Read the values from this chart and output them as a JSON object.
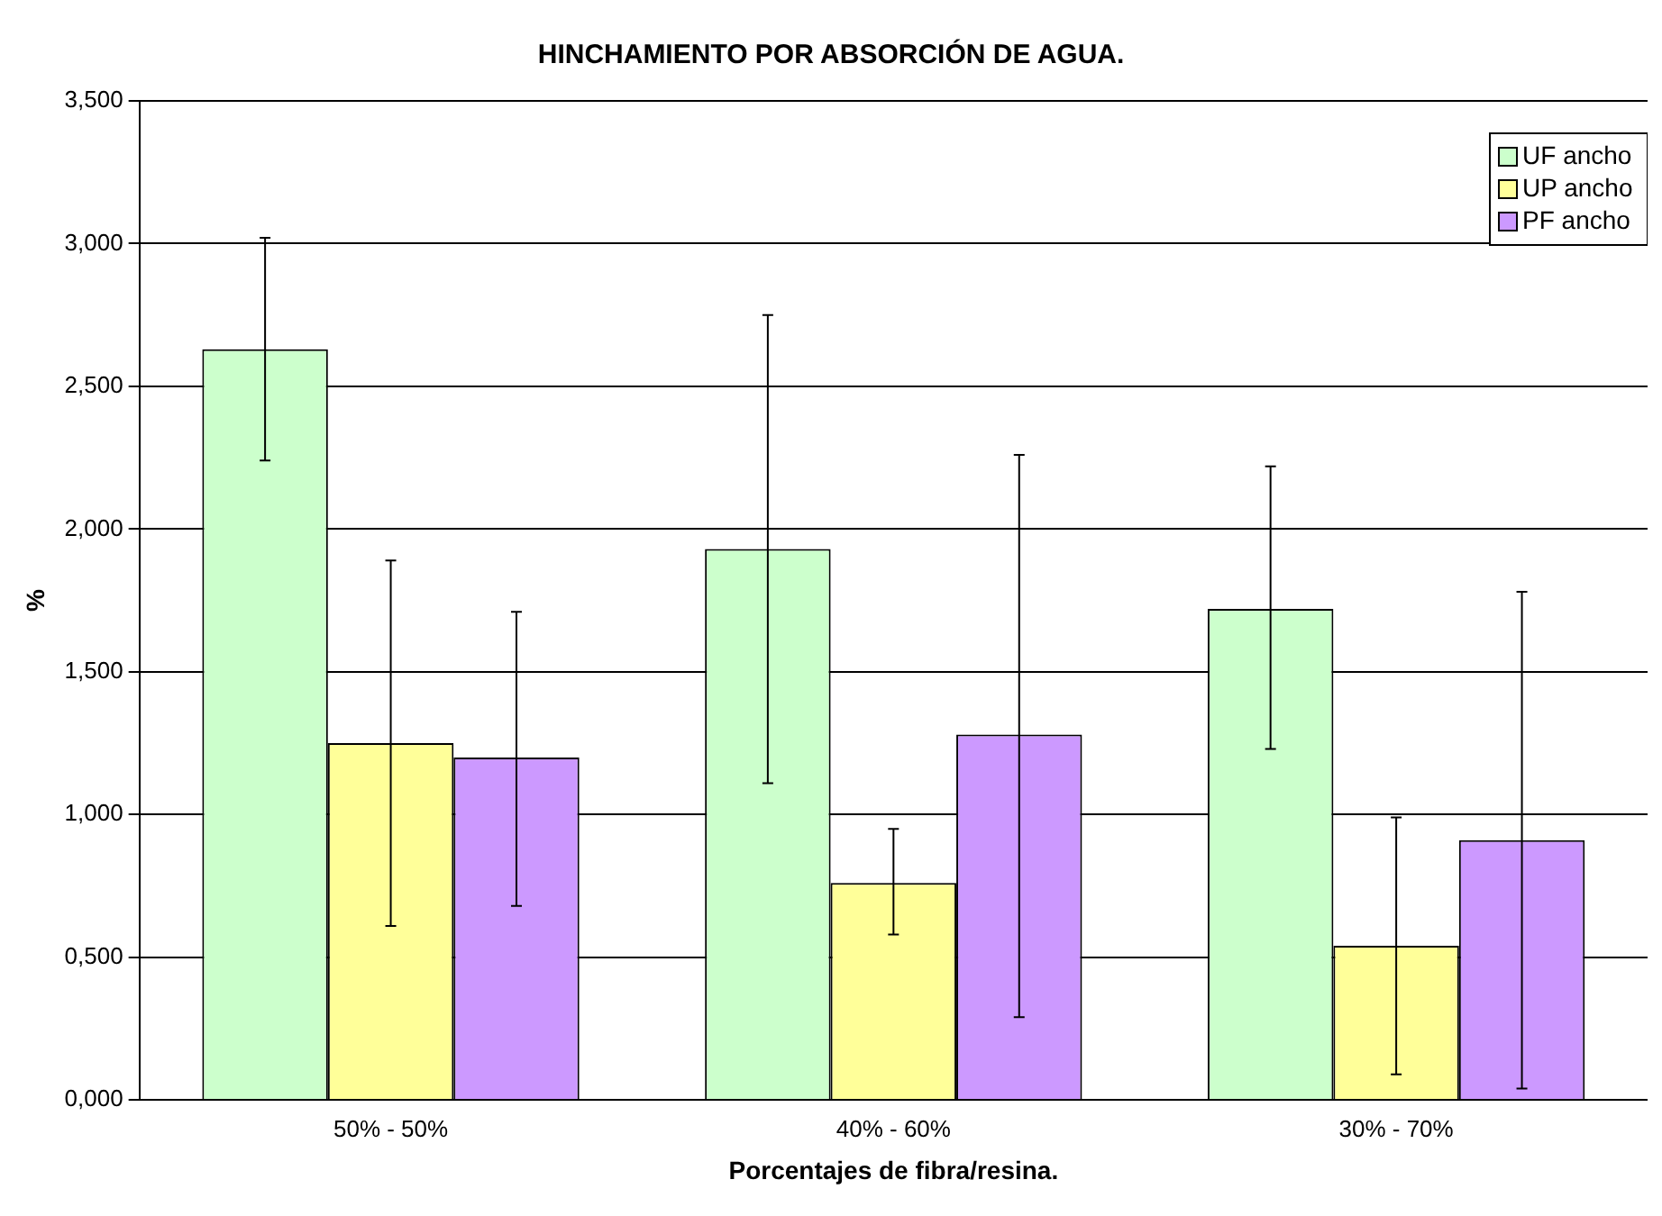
{
  "chart_data": {
    "type": "bar",
    "title": "HINCHAMIENTO POR ABSORCIÓN DE AGUA.",
    "xlabel": "Porcentajes de fibra/resina.",
    "ylabel": "%",
    "categories": [
      "50% - 50%",
      "40% - 60%",
      "30% - 70%"
    ],
    "series": [
      {
        "name": "UF ancho",
        "color": "#ccffcc",
        "values": [
          2.63,
          1.93,
          1.72
        ],
        "errors": [
          [
            2.24,
            3.02
          ],
          [
            1.11,
            2.75
          ],
          [
            1.23,
            2.22
          ]
        ]
      },
      {
        "name": "UP ancho",
        "color": "#ffff99",
        "values": [
          1.25,
          0.76,
          0.54
        ],
        "errors": [
          [
            0.61,
            1.89
          ],
          [
            0.58,
            0.95
          ],
          [
            0.09,
            0.99
          ]
        ]
      },
      {
        "name": "PF ancho",
        "color": "#cc99ff",
        "values": [
          1.2,
          1.28,
          0.91
        ],
        "errors": [
          [
            0.68,
            1.71
          ],
          [
            0.29,
            2.26
          ],
          [
            0.04,
            1.78
          ]
        ]
      }
    ],
    "ylim": [
      0,
      3.5
    ],
    "yticks": [
      {
        "value": 0,
        "label": "0,000"
      },
      {
        "value": 0.5,
        "label": "0,500"
      },
      {
        "value": 1,
        "label": "1,000"
      },
      {
        "value": 1.5,
        "label": "1,500"
      },
      {
        "value": 2,
        "label": "2,000"
      },
      {
        "value": 2.5,
        "label": "2,500"
      },
      {
        "value": 3,
        "label": "3,000"
      },
      {
        "value": 3.5,
        "label": "3,500"
      }
    ],
    "grid": "y",
    "legend": "top right"
  }
}
